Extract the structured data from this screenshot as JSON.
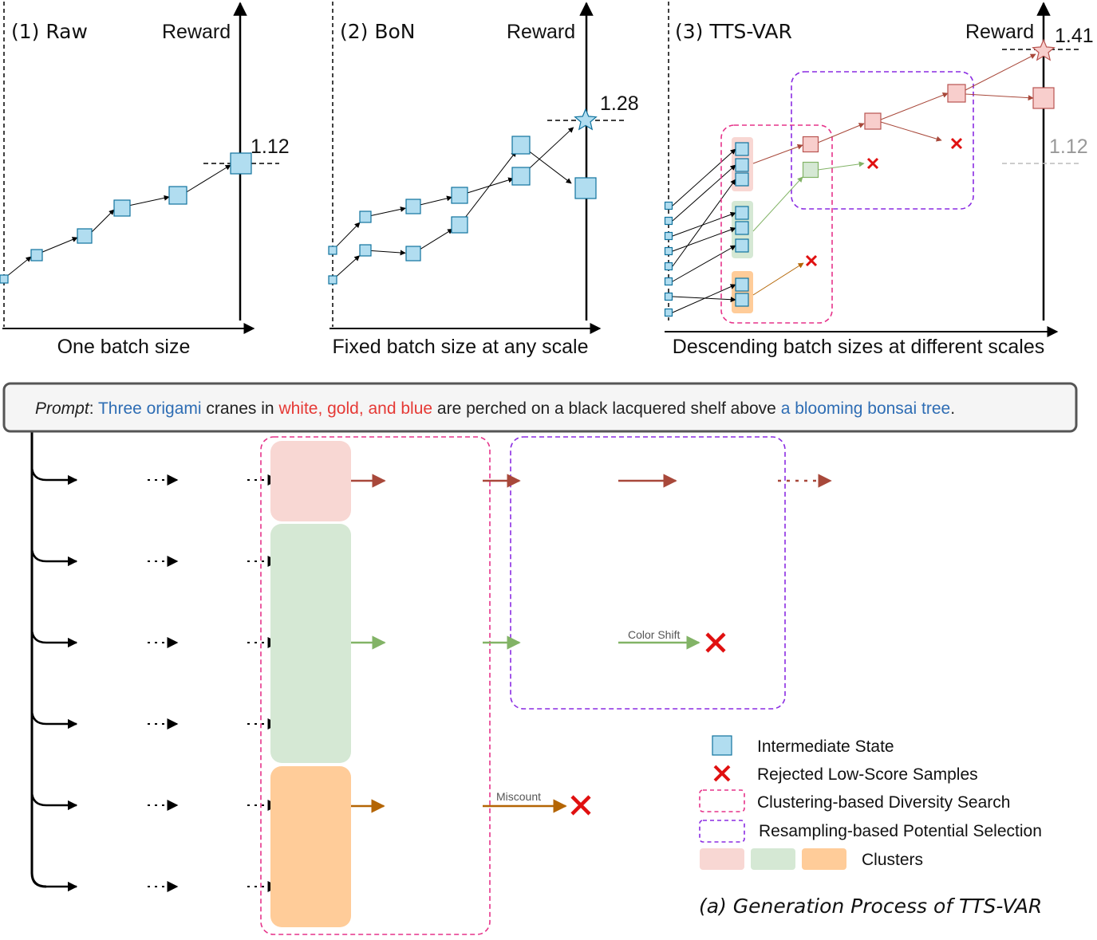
{
  "panels": [
    {
      "title": "(1) Raw",
      "reward_label": "Reward",
      "value": "1.12",
      "xlabel": "One batch size"
    },
    {
      "title": "(2) BoN",
      "reward_label": "Reward",
      "value": "1.28",
      "xlabel": "Fixed batch size at any scale"
    },
    {
      "title": "(3) TTS-VAR",
      "reward_label": "Reward",
      "value": "1.41",
      "baseline_value": "1.12",
      "xlabel": "Descending batch sizes at different scales"
    }
  ],
  "prompt": {
    "label": "Prompt",
    "segments": [
      {
        "text": ": ",
        "color": "#222222"
      },
      {
        "text": "Three origami",
        "color": "#2e6db4"
      },
      {
        "text": " cranes in ",
        "color": "#222222"
      },
      {
        "text": "white, gold, and blue",
        "color": "#e53935"
      },
      {
        "text": " are perched on a black lacquered shelf above ",
        "color": "#222222"
      },
      {
        "text": "a blooming bonsai tree",
        "color": "#2e6db4"
      },
      {
        "text": ".",
        "color": "#222222"
      }
    ]
  },
  "annotations": {
    "color_shift": "Color Shift",
    "miscount": "Miscount"
  },
  "legend": {
    "intermediate_state": "Intermediate State",
    "rejected": "Rejected Low-Score Samples",
    "clustering": "Clustering-based Diversity Search",
    "resampling": "Resampling-based Potential Selection",
    "clusters": "Clusters"
  },
  "caption": "(a) Generation Process of TTS-VAR",
  "colors": {
    "state_fill": "#b1ddf0",
    "state_stroke": "#10739e",
    "cluster_pink": "#f8d7d3",
    "cluster_green": "#d5e8d4",
    "cluster_orange": "#ffcc99",
    "path_red": "#a8483a",
    "path_green": "#82b366",
    "path_orange": "#b46504",
    "reject": "#e01010",
    "clustering_box": "#e6338a",
    "resampling_box": "#8a2be2"
  }
}
